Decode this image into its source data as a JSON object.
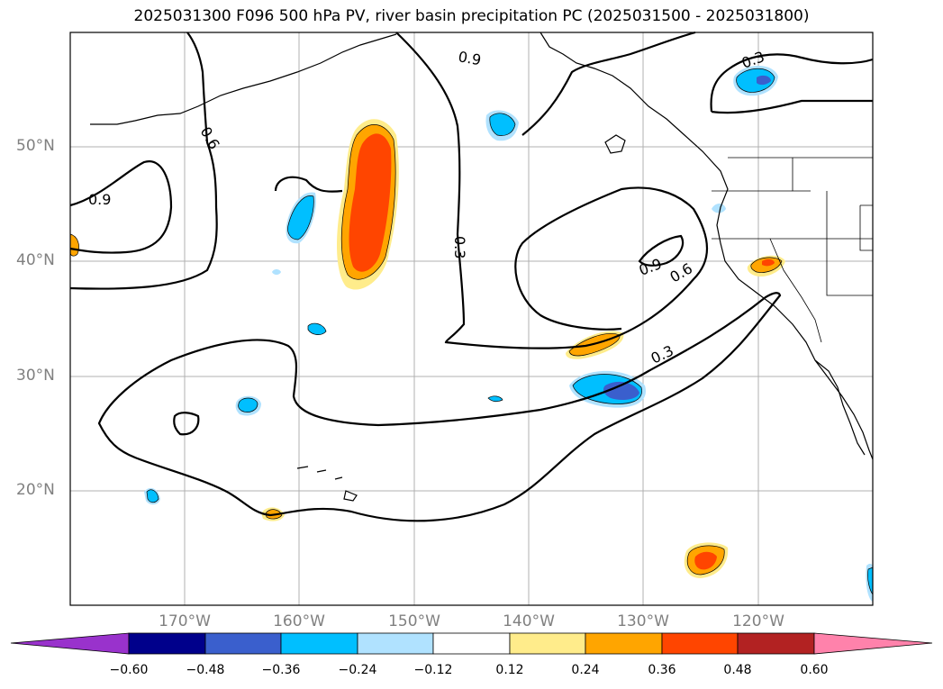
{
  "title": "2025031300 F096 500 hPa PV, river basin precipitation PC (2025031500 - 2025031800)",
  "map": {
    "projection": "plate-carree",
    "lon_range": [
      -180,
      -110
    ],
    "lat_range": [
      10,
      60
    ],
    "grid": true,
    "lat_ticks": [
      "50°N",
      "40°N",
      "30°N",
      "20°N"
    ],
    "lon_ticks": [
      "170°W",
      "160°W",
      "150°W",
      "140°W",
      "130°W",
      "120°W"
    ],
    "contour_labels": [
      "0.9",
      "0.6",
      "0.9",
      "0.3",
      "0.9",
      "0.6",
      "0.3",
      "0.3"
    ]
  },
  "colorbar": {
    "ticks": [
      "−0.60",
      "−0.48",
      "−0.36",
      "−0.24",
      "−0.12",
      "0.12",
      "0.24",
      "0.36",
      "0.48",
      "0.60"
    ],
    "colors": [
      "#9932CC",
      "#00008B",
      "#3A5FCD",
      "#00BFFF",
      "#B0E2FF",
      "#FFFFFF",
      "#FFEC8B",
      "#FFA500",
      "#FF4500",
      "#B22222",
      "#FF82AB"
    ],
    "extend": "both"
  }
}
